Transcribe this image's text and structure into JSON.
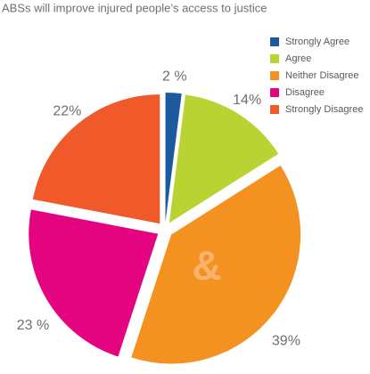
{
  "chart_data": {
    "type": "pie",
    "title": "ABSs will improve injured people’s access to justice",
    "categories": [
      "Strongly Agree",
      "Agree",
      "Neither Disagree",
      "Disagree",
      "Strongly Disagree"
    ],
    "values": [
      2,
      14,
      39,
      23,
      22
    ],
    "value_labels": [
      "2 %",
      "14%",
      "39%",
      "23 %",
      "22%"
    ],
    "colors": [
      "#1b5a9e",
      "#b9d432",
      "#f39221",
      "#e5047f",
      "#f05a2b"
    ],
    "legend": "top-right",
    "watermark": "&"
  }
}
